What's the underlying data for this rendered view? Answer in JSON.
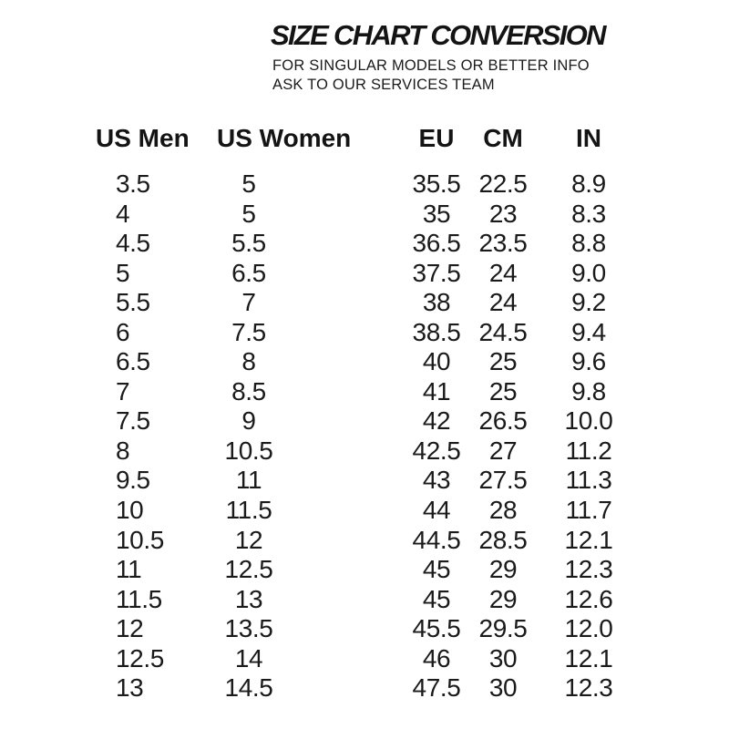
{
  "header": {
    "title": "SIZE CHART CONVERSION",
    "subtitle_line1": "FOR SINGULAR MODELS OR BETTER INFO",
    "subtitle_line2": "ASK TO OUR SERVICES TEAM"
  },
  "colors": {
    "background": "#ffffff",
    "text": "#171717"
  },
  "chart_data": {
    "type": "table",
    "title": "SIZE CHART CONVERSION",
    "subtitle": "FOR SINGULAR MODELS OR BETTER INFO ASK TO OUR SERVICES TEAM",
    "columns": [
      "US Men",
      "US Women",
      "EU",
      "CM",
      "IN"
    ],
    "rows": [
      [
        "3.5",
        "5",
        "35.5",
        "22.5",
        "8.9"
      ],
      [
        "4",
        "5",
        "35",
        "23",
        "8.3"
      ],
      [
        "4.5",
        "5.5",
        "36.5",
        "23.5",
        "8.8"
      ],
      [
        "5",
        "6.5",
        "37.5",
        "24",
        "9.0"
      ],
      [
        "5.5",
        "7",
        "38",
        "24",
        "9.2"
      ],
      [
        "6",
        "7.5",
        "38.5",
        "24.5",
        "9.4"
      ],
      [
        "6.5",
        "8",
        "40",
        "25",
        "9.6"
      ],
      [
        "7",
        "8.5",
        "41",
        "25",
        "9.8"
      ],
      [
        "7.5",
        "9",
        "42",
        "26.5",
        "10.0"
      ],
      [
        "8",
        "10.5",
        "42.5",
        "27",
        "11.2"
      ],
      [
        "9.5",
        "11",
        "43",
        "27.5",
        "11.3"
      ],
      [
        "10",
        "11.5",
        "44",
        "28",
        "11.7"
      ],
      [
        "10.5",
        "12",
        "44.5",
        "28.5",
        "12.1"
      ],
      [
        "11",
        "12.5",
        "45",
        "29",
        "12.3"
      ],
      [
        "11.5",
        "13",
        "45",
        "29",
        "12.6"
      ],
      [
        "12",
        "13.5",
        "45.5",
        "29.5",
        "12.0"
      ],
      [
        "12.5",
        "14",
        "46",
        "30",
        "12.1"
      ],
      [
        "13",
        "14.5",
        "47.5",
        "30",
        "12.3"
      ]
    ]
  }
}
